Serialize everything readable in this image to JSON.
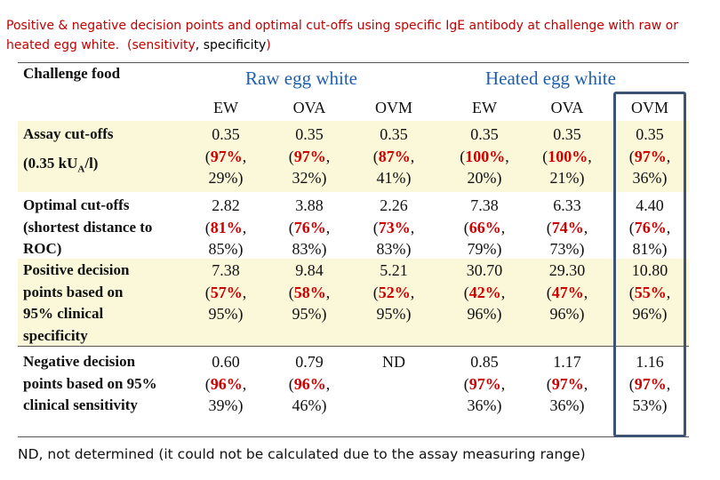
{
  "title": {
    "main": "Positive & negative decision points and optimal cut-offs using specific IgE antibody at challenge with raw or heated egg white.",
    "legend_open": "(",
    "legend_sensitivity": "sensitivity",
    "legend_comma": ", ",
    "legend_specificity": "specificity",
    "legend_close": ")"
  },
  "table": {
    "corner_label": "Challenge food",
    "group_raw": "Raw egg white",
    "group_heated": "Heated egg white",
    "columns": [
      "EW",
      "OVA",
      "OVM",
      "EW",
      "OVA",
      "OVM"
    ],
    "rows": [
      {
        "label": [
          "Assay cut-offs",
          "(0.35 kU",
          "A",
          "/l)"
        ],
        "cells": [
          {
            "value": "0.35",
            "sens": "(97%,",
            "spec": "29%)"
          },
          {
            "value": "0.35",
            "sens": "(97%,",
            "spec": "32%)"
          },
          {
            "value": "0.35",
            "sens": "(87%,",
            "spec": "41%)"
          },
          {
            "value": "0.35",
            "sens": "(100%,",
            "spec": "20%)"
          },
          {
            "value": "0.35",
            "sens": "(100%,",
            "spec": "21%)"
          },
          {
            "value": "0.35",
            "sens": "(97%,",
            "spec": "36%)"
          }
        ]
      },
      {
        "label": [
          "Optimal cut-offs",
          "(shortest distance to",
          "ROC)"
        ],
        "cells": [
          {
            "value": "2.82",
            "sens": "(81%,",
            "spec": "85%)"
          },
          {
            "value": "3.88",
            "sens": "(76%,",
            "spec": "83%)"
          },
          {
            "value": "2.26",
            "sens": "(73%,",
            "spec": "83%)"
          },
          {
            "value": "7.38",
            "sens": "(66%,",
            "spec": "79%)"
          },
          {
            "value": "6.33",
            "sens": "(74%,",
            "spec": "73%)"
          },
          {
            "value": "4.40",
            "sens": "(76%,",
            "spec": "81%)"
          }
        ]
      },
      {
        "label": [
          "Positive decision",
          "points  based on",
          "95% clinical",
          "specificity"
        ],
        "cells": [
          {
            "value": "7.38",
            "sens": "(57%,",
            "spec": "95%)"
          },
          {
            "value": "9.84",
            "sens": "(58%,",
            "spec": "95%)"
          },
          {
            "value": "5.21",
            "sens": "(52%,",
            "spec": "95%)"
          },
          {
            "value": "30.70",
            "sens": "(42%,",
            "spec": "96%)"
          },
          {
            "value": "29.30",
            "sens": "(47%,",
            "spec": "96%)"
          },
          {
            "value": "10.80",
            "sens": "(55%,",
            "spec": "96%)"
          }
        ]
      },
      {
        "label": [
          "Negative decision",
          "points based on 95%",
          "clinical sensitivity"
        ],
        "cells": [
          {
            "value": "0.60",
            "sens": "(96%,",
            "spec": "39%)"
          },
          {
            "value": "0.79",
            "sens": "(96%,",
            "spec": "46%)"
          },
          {
            "value": "ND",
            "sens": "",
            "spec": ""
          },
          {
            "value": "0.85",
            "sens": "(97%,",
            "spec": "36%)"
          },
          {
            "value": "1.17",
            "sens": "(97%,",
            "spec": "36%)"
          },
          {
            "value": "1.16",
            "sens": "(97%,",
            "spec": "53%)"
          }
        ]
      }
    ]
  },
  "footnote": "ND, not determined (it could not be calculated due to the assay measuring range)",
  "colors": {
    "sensitivity": "#d00000",
    "group_header": "#1f5fae",
    "band": "#fbf7d9",
    "highlight_box": "#3c5373"
  }
}
